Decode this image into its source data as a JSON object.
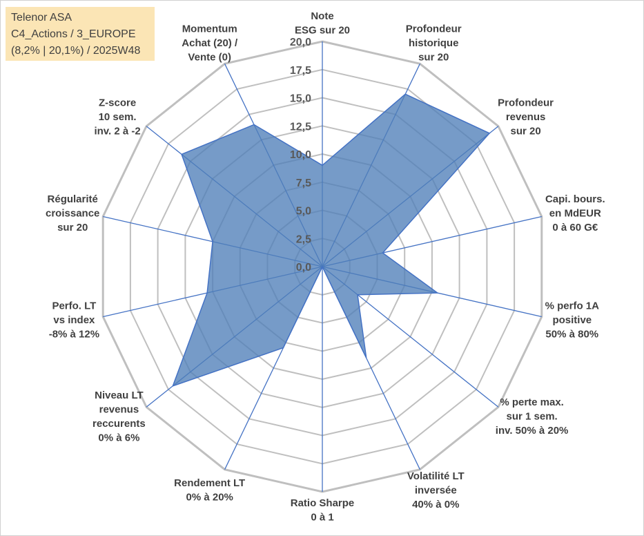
{
  "info": {
    "line1": "Telenor ASA",
    "line2": "C4_Actions / 3_EUROPE",
    "line3": "(8,2% | 20,1%) / 2025W48"
  },
  "chart_data": {
    "type": "radar",
    "title": "Telenor ASA",
    "rmin": 0,
    "rmax": 20,
    "ticks": [
      "0,0",
      "2,5",
      "5,0",
      "7,5",
      "10,0",
      "12,5",
      "15,0",
      "17,5",
      "20,0"
    ],
    "grid_levels": [
      2.5,
      5,
      7.5,
      10,
      12.5,
      15,
      17.5,
      20
    ],
    "axes": [
      {
        "lines": [
          "Note",
          "ESG sur 20"
        ],
        "value": 9
      },
      {
        "lines": [
          "Profondeur",
          "historique",
          "sur 20"
        ],
        "value": 17
      },
      {
        "lines": [
          "Profondeur",
          "revenus",
          "sur 20"
        ],
        "value": 19
      },
      {
        "lines": [
          "Capi. bours.",
          "en MdEUR",
          "0 à 60 G€"
        ],
        "value": 5.5
      },
      {
        "lines": [
          "% perfo 1A",
          "positive",
          "50% à 80%"
        ],
        "value": 10.5
      },
      {
        "lines": [
          "% perte max.",
          "sur 1 sem.",
          "inv. 50% à 20%"
        ],
        "value": 4
      },
      {
        "lines": [
          "Volatilité LT",
          "inversée",
          "40% à 0%"
        ],
        "value": 9
      },
      {
        "lines": [
          "Ratio Sharpe",
          "0 à 1"
        ],
        "value": 0
      },
      {
        "lines": [
          "Rendement LT",
          "0% à 20%"
        ],
        "value": 8
      },
      {
        "lines": [
          "Niveau LT",
          "revenus",
          "reccurents",
          "0% à 6%"
        ],
        "value": 17
      },
      {
        "lines": [
          "Perfo. LT",
          "vs index",
          "-8% à 12%"
        ],
        "value": 10.5
      },
      {
        "lines": [
          "Régularité",
          "croissance",
          "sur 20"
        ],
        "value": 10
      },
      {
        "lines": [
          "Z-score",
          "10 sem.",
          "inv. 2 à -2"
        ],
        "value": 16
      },
      {
        "lines": [
          "Momentum",
          "Achat (20) /",
          "Vente (0)"
        ],
        "value": 14
      }
    ],
    "fill_color": "#4f7fb8",
    "line_color": "#4472c4",
    "grid_color": "#bfbfbf"
  }
}
